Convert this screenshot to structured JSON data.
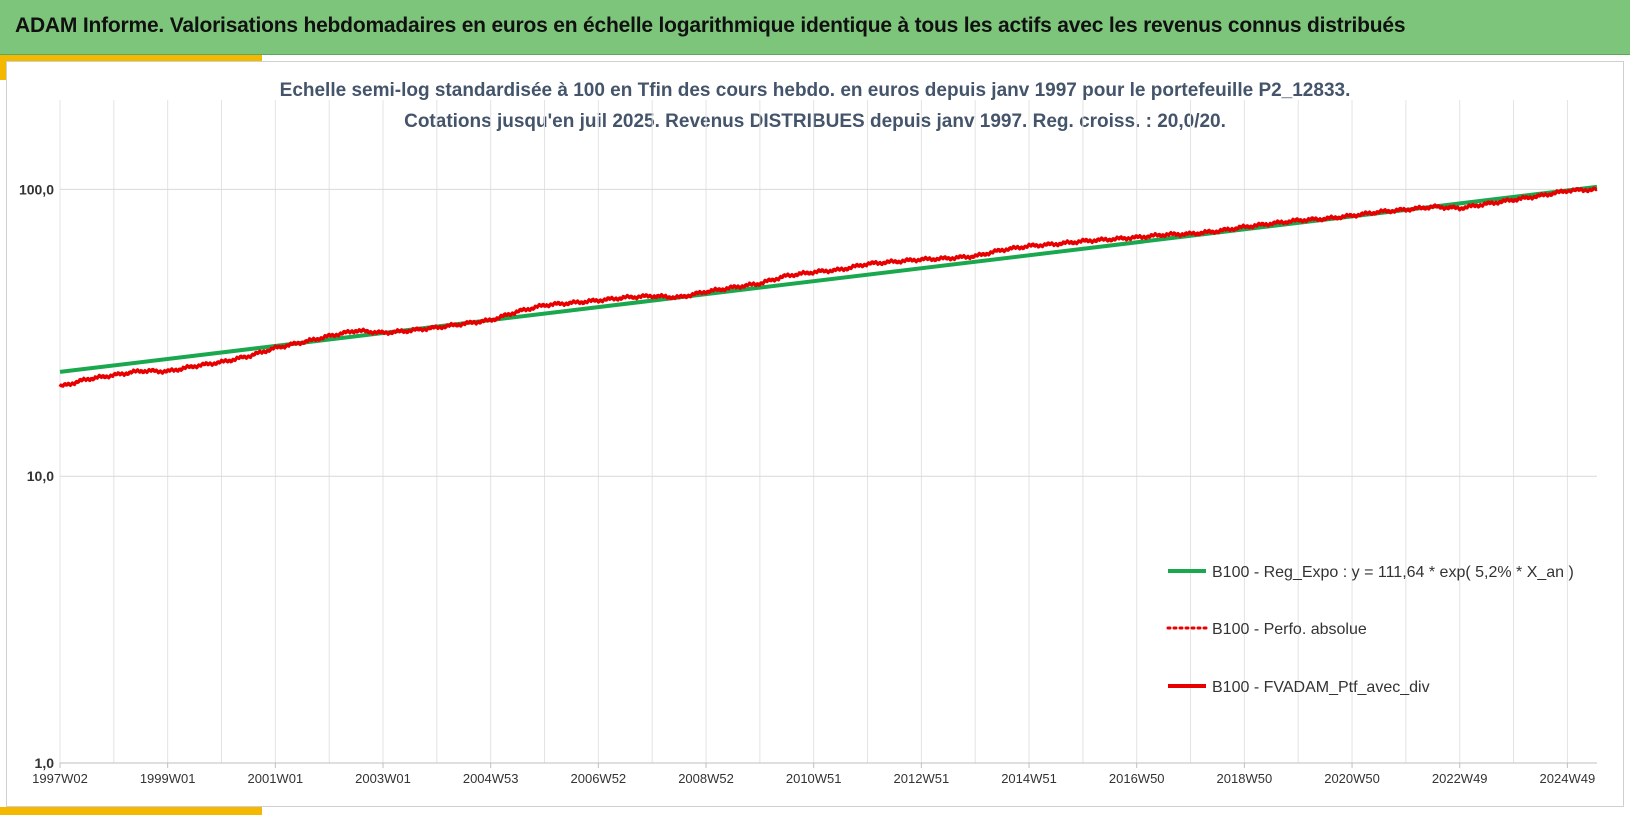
{
  "header": {
    "title": "ADAM Informe. Valorisations hebdomadaires en euros en échelle logarithmique identique à tous les actifs avec les revenus connus distribués"
  },
  "colors": {
    "header_bg": "#7dc57a",
    "accent": "#f5b800",
    "regression": "#1aa84e",
    "portfolio": "#e80000",
    "subtitle": "#44546a"
  },
  "chart_data": {
    "type": "line",
    "title_line1": "Echelle semi-log standardisée  à 100 en Tfin des cours hebdo.  en euros depuis janv 1997 pour le portefeuille P2_12833.",
    "title_line2": "Cotations jusqu'en juil 2025. Revenus DISTRIBUES depuis janv 1997. Reg. croiss. : 20,0/20.",
    "y_scale": "log",
    "ylim": [
      1,
      205
    ],
    "xlim": [
      1997.0,
      2025.55
    ],
    "grid": true,
    "legend_position": "bottom-right",
    "yticks": [
      {
        "value": 100,
        "label": "100,0"
      },
      {
        "value": 10,
        "label": "10,0"
      },
      {
        "value": 1,
        "label": "1,0"
      }
    ],
    "xticks": [
      {
        "value": 1997.0,
        "label": "1997W02"
      },
      {
        "value": 1999.0,
        "label": "1999W01"
      },
      {
        "value": 2001.0,
        "label": "2001W01"
      },
      {
        "value": 2003.0,
        "label": "2003W01"
      },
      {
        "value": 2005.0,
        "label": "2004W53"
      },
      {
        "value": 2007.0,
        "label": "2006W52"
      },
      {
        "value": 2009.0,
        "label": "2008W52"
      },
      {
        "value": 2011.0,
        "label": "2010W51"
      },
      {
        "value": 2013.0,
        "label": "2012W51"
      },
      {
        "value": 2015.0,
        "label": "2014W51"
      },
      {
        "value": 2017.0,
        "label": "2016W50"
      },
      {
        "value": 2019.0,
        "label": "2018W50"
      },
      {
        "value": 2021.0,
        "label": "2020W50"
      },
      {
        "value": 2023.0,
        "label": "2022W49"
      },
      {
        "value": 2025.0,
        "label": "2024W49"
      }
    ],
    "series": [
      {
        "name": "B100 - Reg_Expo : y = 111,64 * exp( 5,2% *  X_an )",
        "style": "solid",
        "color": "#1aa84e",
        "x": [
          1997.0,
          2025.55
        ],
        "y": [
          23.1,
          102
        ]
      },
      {
        "name": "B100 - Perfo. absolue",
        "style": "dotted",
        "color": "#e80000",
        "x": [],
        "y": []
      },
      {
        "name": "B100 - FVADAM_Ptf_avec_div",
        "style": "solid",
        "color": "#e80000",
        "x": [
          1997.0,
          1997.5,
          1998.0,
          1998.5,
          1999.0,
          1999.5,
          2000.0,
          2000.5,
          2001.0,
          2001.5,
          2002.0,
          2002.5,
          2003.0,
          2003.5,
          2004.0,
          2004.5,
          2005.0,
          2005.5,
          2006.0,
          2006.5,
          2007.0,
          2007.5,
          2008.0,
          2008.5,
          2009.0,
          2009.5,
          2010.0,
          2010.5,
          2011.0,
          2011.5,
          2012.0,
          2012.5,
          2013.0,
          2013.5,
          2014.0,
          2014.5,
          2015.0,
          2015.5,
          2016.0,
          2016.5,
          2017.0,
          2017.5,
          2018.0,
          2018.5,
          2019.0,
          2019.5,
          2020.0,
          2020.5,
          2021.0,
          2021.5,
          2022.0,
          2022.5,
          2023.0,
          2023.5,
          2024.0,
          2024.5,
          2025.0,
          2025.55
        ],
        "y": [
          20.5,
          21.8,
          22.5,
          23.3,
          23.2,
          24.2,
          25.0,
          26.2,
          28.0,
          29.3,
          30.8,
          32.2,
          31.6,
          32.2,
          33.0,
          34.0,
          35.0,
          37.5,
          39.5,
          40.2,
          41.0,
          42.0,
          42.5,
          42.0,
          44.0,
          45.5,
          47.0,
          50.0,
          51.5,
          52.5,
          55.0,
          56.0,
          57.0,
          57.5,
          58.5,
          61.5,
          63.5,
          64.5,
          66.0,
          67.0,
          68.0,
          69.5,
          70.0,
          71.5,
          74.0,
          76.0,
          78.0,
          79.0,
          81.0,
          83.5,
          85.0,
          87.0,
          86.0,
          89.0,
          92.0,
          95.0,
          99.0,
          100.0
        ]
      }
    ]
  }
}
